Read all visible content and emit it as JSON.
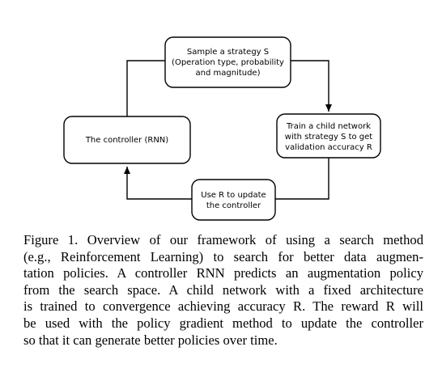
{
  "diagram": {
    "nodes": {
      "sample": {
        "lines": [
          "Sample a strategy S",
          "(Operation type, probability",
          "and magnitude)"
        ]
      },
      "train": {
        "lines": [
          "Train a child network",
          "with strategy S to get",
          "validation accuracy R"
        ]
      },
      "update": {
        "lines": [
          "Use R to update",
          "the controller"
        ]
      },
      "controller": {
        "lines": [
          "The controller (RNN)"
        ]
      }
    }
  },
  "caption": {
    "lines": [
      "Figure 1. Overview of our framework of using a search method",
      "(e.g., Reinforcement Learning) to search for better data augmen-",
      "tation policies. A controller RNN predicts an augmentation policy",
      "from the search space. A child network with a fixed architecture",
      "is trained to convergence achieving accuracy R. The reward R will",
      "be used with the policy gradient method to update the controller",
      "so that it can generate better policies over time."
    ]
  }
}
